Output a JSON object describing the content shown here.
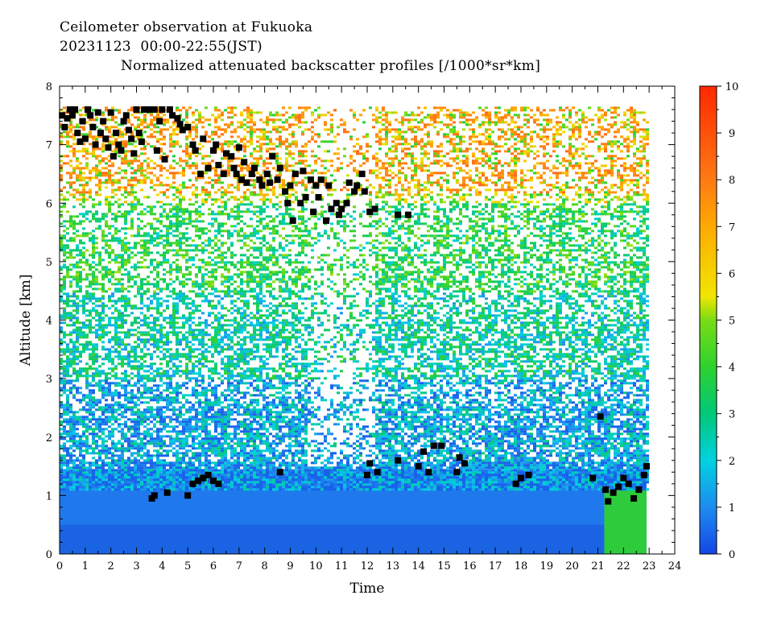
{
  "chart_data": {
    "type": "heatmap",
    "title_lines": [
      "Ceilometer observation at Fukuoka",
      "20231123  00:00-22:55(JST)",
      "Normalized attenuated backscatter profiles [/1000*sr*km]"
    ],
    "xlabel": "Time",
    "ylabel": "Altitude [km]",
    "xlim": [
      0,
      24
    ],
    "ylim": [
      0,
      8
    ],
    "x_ticks": [
      "0",
      "1",
      "2",
      "3",
      "4",
      "5",
      "6",
      "7",
      "8",
      "9",
      "10",
      "11",
      "12",
      "13",
      "14",
      "15",
      "16",
      "17",
      "18",
      "19",
      "20",
      "21",
      "22",
      "23",
      "24"
    ],
    "y_ticks": [
      "0",
      "1",
      "2",
      "3",
      "4",
      "5",
      "6",
      "7",
      "8"
    ],
    "data_end_time": 22.9,
    "data_top_altitude": 7.65,
    "colorbar": {
      "min": 0,
      "max": 10,
      "ticks": [
        "0",
        "1",
        "2",
        "3",
        "4",
        "5",
        "6",
        "7",
        "8",
        "9",
        "10"
      ],
      "stops": [
        {
          "v": 0,
          "color": "#1446e6"
        },
        {
          "v": 1,
          "color": "#1e8cf0"
        },
        {
          "v": 2,
          "color": "#00d2e0"
        },
        {
          "v": 3,
          "color": "#00c878"
        },
        {
          "v": 4,
          "color": "#2ed22e"
        },
        {
          "v": 5,
          "color": "#78dc14"
        },
        {
          "v": 5.5,
          "color": "#f0e600"
        },
        {
          "v": 7,
          "color": "#ffaa00"
        },
        {
          "v": 8,
          "color": "#ff7a14"
        },
        {
          "v": 10,
          "color": "#ff2800"
        }
      ]
    },
    "cloud_base_points": [
      [
        0.1,
        7.5
      ],
      [
        0.2,
        7.3
      ],
      [
        0.3,
        7.45
      ],
      [
        0.4,
        7.6
      ],
      [
        0.5,
        7.5
      ],
      [
        0.6,
        7.6
      ],
      [
        0.7,
        7.2
      ],
      [
        0.8,
        7.05
      ],
      [
        0.9,
        7.4
      ],
      [
        1.0,
        7.1
      ],
      [
        1.1,
        7.6
      ],
      [
        1.2,
        7.5
      ],
      [
        1.3,
        7.3
      ],
      [
        1.4,
        7.0
      ],
      [
        1.5,
        7.55
      ],
      [
        1.6,
        7.2
      ],
      [
        1.7,
        7.4
      ],
      [
        1.8,
        7.1
      ],
      [
        1.9,
        6.95
      ],
      [
        2.0,
        7.55
      ],
      [
        2.1,
        6.8
      ],
      [
        2.2,
        7.2
      ],
      [
        2.3,
        7.0
      ],
      [
        2.4,
        6.9
      ],
      [
        2.5,
        7.4
      ],
      [
        2.6,
        7.5
      ],
      [
        2.7,
        7.25
      ],
      [
        2.8,
        7.1
      ],
      [
        2.9,
        6.85
      ],
      [
        3.0,
        7.6
      ],
      [
        3.1,
        7.2
      ],
      [
        3.2,
        7.05
      ],
      [
        3.3,
        7.6
      ],
      [
        3.5,
        7.6
      ],
      [
        3.7,
        7.6
      ],
      [
        3.8,
        6.9
      ],
      [
        3.9,
        7.4
      ],
      [
        4.0,
        7.6
      ],
      [
        4.1,
        6.75
      ],
      [
        4.3,
        7.6
      ],
      [
        4.4,
        7.5
      ],
      [
        4.6,
        7.45
      ],
      [
        4.7,
        7.35
      ],
      [
        4.8,
        7.25
      ],
      [
        5.0,
        7.3
      ],
      [
        5.2,
        7.0
      ],
      [
        5.3,
        6.9
      ],
      [
        5.5,
        6.5
      ],
      [
        5.6,
        7.1
      ],
      [
        5.8,
        6.6
      ],
      [
        6.0,
        6.9
      ],
      [
        6.1,
        7.0
      ],
      [
        6.2,
        6.65
      ],
      [
        6.4,
        6.5
      ],
      [
        6.5,
        6.85
      ],
      [
        6.7,
        6.8
      ],
      [
        6.8,
        6.6
      ],
      [
        6.9,
        6.5
      ],
      [
        7.0,
        6.95
      ],
      [
        7.1,
        6.4
      ],
      [
        7.2,
        6.7
      ],
      [
        7.3,
        6.35
      ],
      [
        7.5,
        6.5
      ],
      [
        7.6,
        6.6
      ],
      [
        7.8,
        6.4
      ],
      [
        7.9,
        6.3
      ],
      [
        8.1,
        6.5
      ],
      [
        8.2,
        6.35
      ],
      [
        8.3,
        6.8
      ],
      [
        8.5,
        6.4
      ],
      [
        8.6,
        6.6
      ],
      [
        8.8,
        6.2
      ],
      [
        8.9,
        6.0
      ],
      [
        9.0,
        6.3
      ],
      [
        9.1,
        5.7
      ],
      [
        9.2,
        6.5
      ],
      [
        9.4,
        6.0
      ],
      [
        9.5,
        6.55
      ],
      [
        9.6,
        6.1
      ],
      [
        9.8,
        6.4
      ],
      [
        9.9,
        5.85
      ],
      [
        10.0,
        6.3
      ],
      [
        10.1,
        6.1
      ],
      [
        10.2,
        6.4
      ],
      [
        10.4,
        5.7
      ],
      [
        10.5,
        6.3
      ],
      [
        10.6,
        5.9
      ],
      [
        10.8,
        6.0
      ],
      [
        10.9,
        5.8
      ],
      [
        11.0,
        5.9
      ],
      [
        11.2,
        6.0
      ],
      [
        11.3,
        6.35
      ],
      [
        11.5,
        6.2
      ],
      [
        11.6,
        6.3
      ],
      [
        11.8,
        6.5
      ],
      [
        11.9,
        6.2
      ],
      [
        12.1,
        5.85
      ],
      [
        12.3,
        5.9
      ],
      [
        13.2,
        5.8
      ],
      [
        13.6,
        5.8
      ],
      [
        3.6,
        0.95
      ],
      [
        3.7,
        1.0
      ],
      [
        4.2,
        1.05
      ],
      [
        5.0,
        1.0
      ],
      [
        5.2,
        1.2
      ],
      [
        5.4,
        1.25
      ],
      [
        5.6,
        1.3
      ],
      [
        5.8,
        1.35
      ],
      [
        6.0,
        1.25
      ],
      [
        6.2,
        1.2
      ],
      [
        8.6,
        1.4
      ],
      [
        12.0,
        1.35
      ],
      [
        12.1,
        1.55
      ],
      [
        12.4,
        1.4
      ],
      [
        13.2,
        1.6
      ],
      [
        14.0,
        1.5
      ],
      [
        14.2,
        1.75
      ],
      [
        14.4,
        1.4
      ],
      [
        14.6,
        1.85
      ],
      [
        14.9,
        1.85
      ],
      [
        15.5,
        1.4
      ],
      [
        15.6,
        1.65
      ],
      [
        15.8,
        1.55
      ],
      [
        17.8,
        1.2
      ],
      [
        18.0,
        1.3
      ],
      [
        18.3,
        1.35
      ],
      [
        20.8,
        1.3
      ],
      [
        21.1,
        2.35
      ],
      [
        21.3,
        1.1
      ],
      [
        21.4,
        0.9
      ],
      [
        21.6,
        1.05
      ],
      [
        21.8,
        1.15
      ],
      [
        22.0,
        1.3
      ],
      [
        22.2,
        1.2
      ],
      [
        22.4,
        0.95
      ],
      [
        22.6,
        1.1
      ],
      [
        22.8,
        1.35
      ],
      [
        22.9,
        1.5
      ]
    ]
  }
}
